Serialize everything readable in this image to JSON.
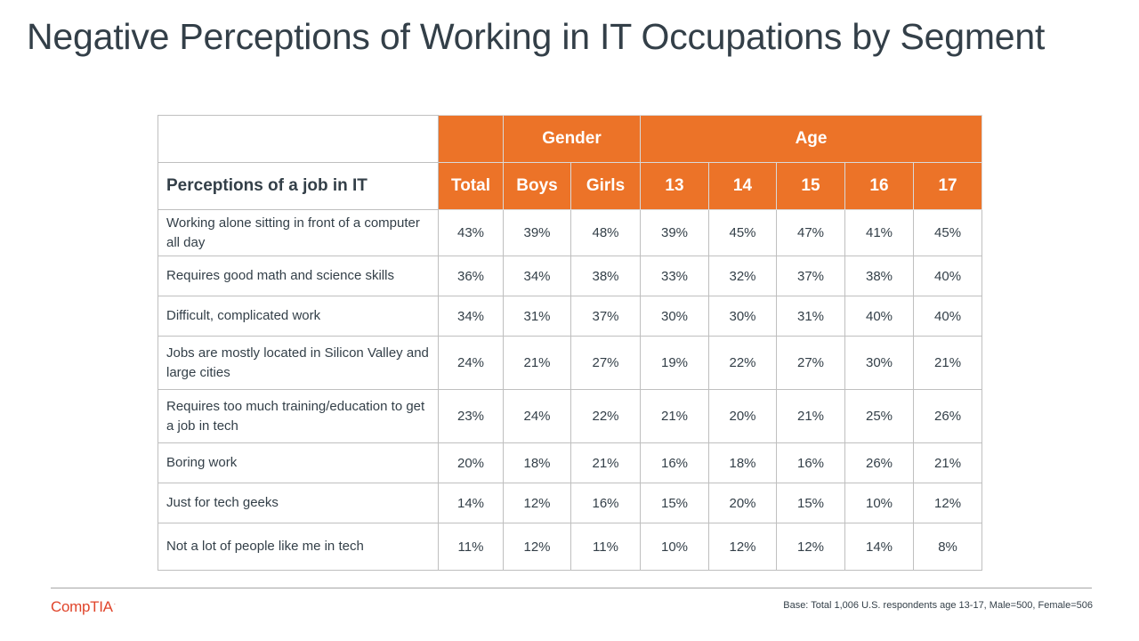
{
  "title": "Negative Perceptions of Working in IT Occupations by Segment",
  "chart_data": {
    "type": "table",
    "group_headers": {
      "gender": "Gender",
      "age": "Age"
    },
    "row_header": "Perceptions of a job in IT",
    "columns": [
      "Total",
      "Boys",
      "Girls",
      "13",
      "14",
      "15",
      "16",
      "17"
    ],
    "rows": [
      {
        "label": "Working alone sitting in front of a computer all day",
        "values": [
          "43%",
          "39%",
          "48%",
          "39%",
          "45%",
          "47%",
          "41%",
          "45%"
        ]
      },
      {
        "label": "Requires good math and science skills",
        "values": [
          "36%",
          "34%",
          "38%",
          "33%",
          "32%",
          "37%",
          "38%",
          "40%"
        ]
      },
      {
        "label": "Difficult, complicated work",
        "values": [
          "34%",
          "31%",
          "37%",
          "30%",
          "30%",
          "31%",
          "40%",
          "40%"
        ]
      },
      {
        "label": "Jobs are mostly located in Silicon Valley and large cities",
        "values": [
          "24%",
          "21%",
          "27%",
          "19%",
          "22%",
          "27%",
          "30%",
          "21%"
        ]
      },
      {
        "label": "Requires too much training/education to get a job in tech",
        "values": [
          "23%",
          "24%",
          "22%",
          "21%",
          "20%",
          "21%",
          "25%",
          "26%"
        ]
      },
      {
        "label": "Boring work",
        "values": [
          "20%",
          "18%",
          "21%",
          "16%",
          "18%",
          "16%",
          "26%",
          "21%"
        ]
      },
      {
        "label": "Just for tech geeks",
        "values": [
          "14%",
          "12%",
          "16%",
          "15%",
          "20%",
          "15%",
          "10%",
          "12%"
        ]
      },
      {
        "label": "Not a lot of people like me in tech",
        "values": [
          "11%",
          "12%",
          "11%",
          "10%",
          "12%",
          "12%",
          "14%",
          "8%"
        ]
      }
    ]
  },
  "footer": {
    "logo": "CompTIA",
    "base": "Base: Total 1,006 U.S. respondents age 13-17, Male=500, Female=506"
  },
  "colors": {
    "header_bg": "#ec7328",
    "header_text": "#ffffff",
    "text": "#333f48",
    "logo": "#e0452b"
  }
}
